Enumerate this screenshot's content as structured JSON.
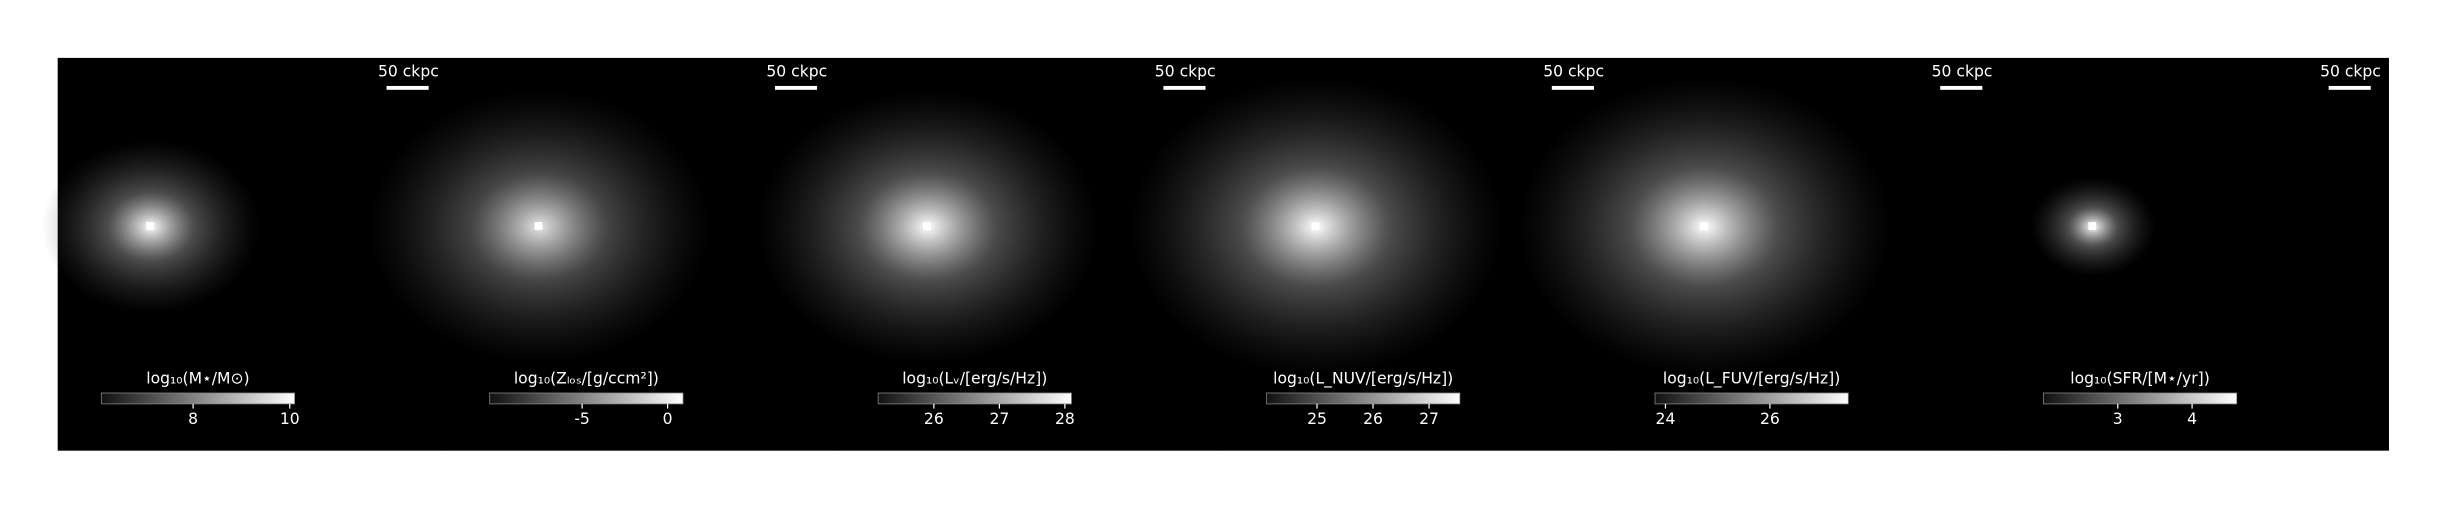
{
  "chart_data": [
    {
      "type": "image",
      "scale_bar": "50 ckpc",
      "colorbar": {
        "label": "log₁₀(M⋆/M⊙)",
        "lim": [
          6.1,
          10.1
        ],
        "ticks": [
          8,
          10
        ]
      }
    },
    {
      "type": "image",
      "scale_bar": "50 ckpc",
      "colorbar": {
        "label": "log₁₀(Zₗₒₛ/[g/ccm²])",
        "lim": [
          -10.4,
          0.9
        ],
        "ticks": [
          -5,
          0
        ]
      }
    },
    {
      "type": "image",
      "scale_bar": "50 ckpc",
      "colorbar": {
        "label": "log₁₀(Lᵥ/[erg/s/Hz])",
        "lim": [
          25.15,
          28.1
        ],
        "ticks": [
          26,
          27,
          28
        ]
      }
    },
    {
      "type": "image",
      "scale_bar": "50 ckpc",
      "colorbar": {
        "label": "log₁₀(L_NUV/[erg/s/Hz])",
        "lim": [
          24.1,
          27.55
        ],
        "ticks": [
          25,
          26,
          27
        ]
      }
    },
    {
      "type": "image",
      "scale_bar": "50 ckpc",
      "colorbar": {
        "label": "log₁₀(L_FUV/[erg/s/Hz])",
        "lim": [
          23.8,
          27.5
        ],
        "ticks": [
          24,
          26
        ]
      }
    },
    {
      "type": "image",
      "scale_bar": "50 ckpc",
      "colorbar": {
        "label": "log₁₀(SFR/[M⋆/yr])",
        "lim": [
          2.0,
          4.6
        ],
        "ticks": [
          3,
          4
        ]
      }
    }
  ]
}
